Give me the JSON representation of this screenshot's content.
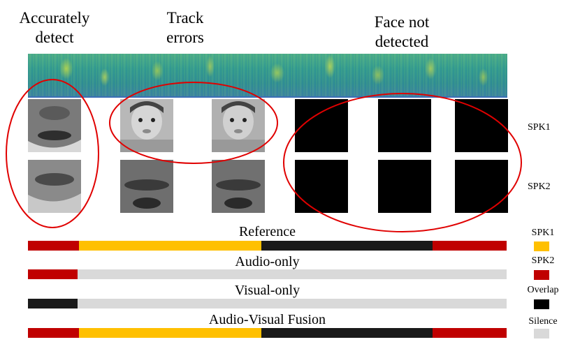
{
  "annotations": [
    {
      "line1": "Accurately",
      "line2": "detect"
    },
    {
      "line1": "Track",
      "line2": "errors"
    },
    {
      "line1": "Face not",
      "line2": "detected"
    }
  ],
  "speakers": [
    "SPK1",
    "SPK2"
  ],
  "bars": [
    {
      "label": "Reference",
      "segments": [
        {
          "state": "SPK2",
          "start": 0.0,
          "end": 0.107
        },
        {
          "state": "SPK1",
          "start": 0.107,
          "end": 0.487
        },
        {
          "state": "Overlap",
          "start": 0.487,
          "end": 0.845
        },
        {
          "state": "SPK2",
          "start": 0.845,
          "end": 1.0
        }
      ]
    },
    {
      "label": "Audio-only",
      "segments": [
        {
          "state": "SPK2",
          "start": 0.0,
          "end": 0.103
        },
        {
          "state": "Silence",
          "start": 0.103,
          "end": 1.0
        }
      ]
    },
    {
      "label": "Visual-only",
      "segments": [
        {
          "state": "Overlap",
          "start": 0.0,
          "end": 0.103
        },
        {
          "state": "Silence",
          "start": 0.103,
          "end": 1.0
        }
      ]
    },
    {
      "label": "Audio-Visual Fusion",
      "segments": [
        {
          "state": "SPK2",
          "start": 0.0,
          "end": 0.107
        },
        {
          "state": "SPK1",
          "start": 0.107,
          "end": 0.487
        },
        {
          "state": "Overlap",
          "start": 0.487,
          "end": 0.845
        },
        {
          "state": "SPK2",
          "start": 0.845,
          "end": 1.0
        }
      ]
    }
  ],
  "legend": [
    {
      "label": "SPK1",
      "color": "#ffc000"
    },
    {
      "label": "SPK2",
      "color": "#c00000"
    },
    {
      "label": "Overlap",
      "color": "#000000"
    },
    {
      "label": "Silence",
      "color": "#d9d9d9"
    }
  ],
  "colors": {
    "SPK1": "#ffc000",
    "SPK2": "#c00000",
    "Overlap": "#1a1a1a",
    "Silence": "#d9d9d9",
    "highlight": "#e00000"
  }
}
